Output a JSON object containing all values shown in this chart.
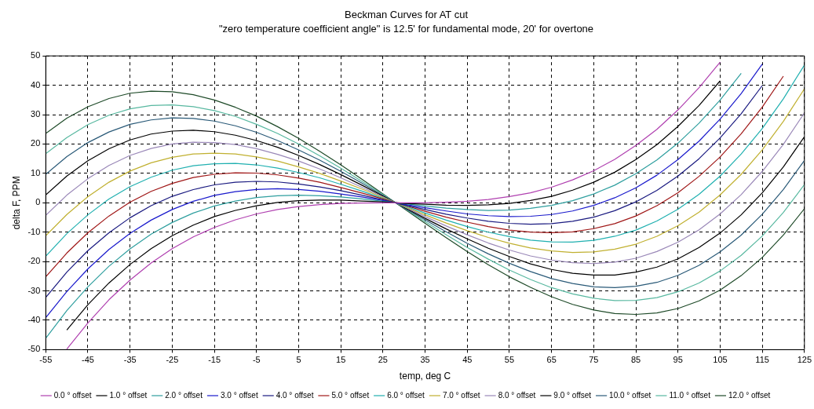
{
  "chart_data": {
    "type": "line",
    "title": "Beckman Curves for AT cut",
    "subtitle": "\"zero temperature coefficient angle\" is 12.5' for fundamental mode, 20' for overtone",
    "xlabel": "temp, deg C",
    "ylabel": "delta F, PPM",
    "x": [
      -55,
      -50,
      -45,
      -40,
      -35,
      -30,
      -25,
      -20,
      -15,
      -10,
      -5,
      0,
      5,
      10,
      15,
      20,
      25,
      30,
      35,
      40,
      45,
      50,
      55,
      60,
      65,
      70,
      75,
      80,
      85,
      90,
      95,
      100,
      105,
      110,
      115,
      120,
      125
    ],
    "xlim": [
      -55,
      125
    ],
    "xticks": [
      -55,
      -45,
      -35,
      -25,
      -15,
      -5,
      5,
      15,
      25,
      35,
      45,
      55,
      65,
      75,
      85,
      95,
      105,
      115,
      125
    ],
    "ylim": [
      -50,
      50
    ],
    "yticks": [
      -50,
      -40,
      -30,
      -20,
      -10,
      0,
      10,
      20,
      30,
      40,
      50
    ],
    "grid": true,
    "legend": "bottom",
    "marker": "none",
    "line_style": "solid",
    "series": [
      {
        "name": "0.0 ° offset",
        "color": "#b040b0",
        "values": [
          null,
          -49.8,
          -40.9,
          -33.0,
          -26.3,
          -20.5,
          -15.6,
          -11.6,
          -8.4,
          -5.8,
          -3.8,
          -2.3,
          -1.3,
          -0.6,
          -0.2,
          -0.1,
          0.0,
          0.0,
          0.0,
          0.2,
          0.5,
          1.1,
          2.1,
          3.4,
          5.3,
          7.8,
          10.9,
          14.8,
          19.5,
          25.0,
          31.6,
          39.2,
          47.9,
          null,
          null,
          null,
          null
        ]
      },
      {
        "name": "1.0 ° offset",
        "color": "#000000",
        "values": [
          null,
          -43.3,
          -34.7,
          -27.3,
          -21.0,
          -15.6,
          -11.2,
          -7.6,
          -4.7,
          -2.6,
          -1.0,
          0.1,
          0.7,
          0.9,
          0.9,
          0.6,
          0.3,
          -0.2,
          -0.5,
          -0.8,
          -0.9,
          -0.7,
          -0.2,
          0.8,
          2.2,
          4.3,
          7.0,
          10.4,
          14.7,
          19.8,
          26.0,
          33.1,
          41.5,
          null,
          null,
          null,
          null
        ]
      },
      {
        "name": "2.0 ° offset",
        "color": "#2f9f9f",
        "values": [
          -46.1,
          -36.7,
          -28.6,
          -21.6,
          -15.7,
          -10.7,
          -6.7,
          -3.5,
          -1.1,
          0.6,
          1.8,
          2.4,
          2.6,
          2.4,
          2.0,
          1.3,
          0.5,
          -0.3,
          -1.1,
          -1.8,
          -2.3,
          -2.6,
          -2.5,
          -1.9,
          -0.9,
          0.7,
          3.0,
          6.0,
          9.9,
          14.6,
          20.3,
          27.1,
          35.0,
          44.1,
          null,
          null,
          null
        ]
      },
      {
        "name": "3.0 ° offset",
        "color": "#1a1acc",
        "values": [
          -39.1,
          -30.2,
          -22.5,
          -15.9,
          -10.4,
          -5.9,
          -2.3,
          0.5,
          2.5,
          3.8,
          4.5,
          4.8,
          4.5,
          3.9,
          3.0,
          2.0,
          0.8,
          -0.5,
          -1.7,
          -2.8,
          -3.8,
          -4.4,
          -4.7,
          -4.6,
          -4.0,
          -2.8,
          -0.9,
          1.7,
          5.1,
          9.4,
          14.7,
          21.0,
          28.5,
          37.2,
          47.2,
          null,
          null
        ]
      },
      {
        "name": "4.0 ° offset",
        "color": "#1a1a80",
        "values": [
          -32.2,
          -23.6,
          -16.3,
          -10.2,
          -5.1,
          -1.0,
          2.2,
          4.5,
          6.1,
          7.0,
          7.3,
          7.1,
          6.4,
          5.4,
          4.1,
          2.6,
          1.0,
          -0.7,
          -2.3,
          -3.9,
          -5.2,
          -6.3,
          -7.0,
          -7.3,
          -7.1,
          -6.3,
          -4.9,
          -2.7,
          0.3,
          4.2,
          9.1,
          15.0,
          22.1,
          30.3,
          39.9,
          null,
          null
        ]
      },
      {
        "name": "5.0 ° offset",
        "color": "#a01818",
        "values": [
          -25.2,
          -17.1,
          -10.2,
          -4.5,
          0.2,
          3.9,
          6.6,
          8.6,
          9.7,
          10.2,
          10.1,
          9.5,
          8.4,
          7.0,
          5.2,
          3.3,
          1.3,
          -0.8,
          -2.9,
          -4.9,
          -6.6,
          -8.1,
          -9.3,
          -10.0,
          -10.2,
          -9.9,
          -8.8,
          -7.1,
          -4.5,
          -1.0,
          3.4,
          9.0,
          15.6,
          23.5,
          32.6,
          43.1,
          null
        ]
      },
      {
        "name": "6.0 ° offset",
        "color": "#20b0b0",
        "values": [
          -18.2,
          -10.5,
          -4.1,
          1.3,
          5.5,
          8.7,
          11.1,
          12.6,
          13.3,
          13.4,
          12.9,
          11.8,
          10.3,
          8.5,
          6.3,
          4.0,
          1.5,
          -1.0,
          -3.5,
          -5.9,
          -8.1,
          -10.0,
          -11.5,
          -12.7,
          -13.3,
          -13.4,
          -12.8,
          -11.4,
          -9.3,
          -6.2,
          -2.2,
          2.9,
          9.1,
          16.6,
          25.3,
          35.4,
          46.9
        ]
      },
      {
        "name": "7.0 ° offset",
        "color": "#c0b030",
        "values": [
          -11.2,
          -4.0,
          2.1,
          7.0,
          10.8,
          13.6,
          15.5,
          16.6,
          16.9,
          16.6,
          15.6,
          14.2,
          12.2,
          10.0,
          7.4,
          4.7,
          1.8,
          -1.2,
          -4.1,
          -6.9,
          -9.5,
          -11.8,
          -13.8,
          -15.4,
          -16.4,
          -16.9,
          -16.7,
          -15.8,
          -14.1,
          -11.4,
          -7.8,
          -3.2,
          2.7,
          9.7,
          18.0,
          27.7,
          38.8
        ]
      },
      {
        "name": "8.0 ° offset",
        "color": "#9a88b8",
        "values": [
          -4.3,
          2.6,
          8.2,
          12.7,
          16.1,
          18.5,
          20.0,
          20.6,
          20.5,
          19.8,
          18.4,
          16.5,
          14.2,
          11.5,
          8.5,
          5.3,
          2.0,
          -1.3,
          -4.7,
          -7.9,
          -10.9,
          -13.7,
          -16.1,
          -18.1,
          -19.5,
          -20.4,
          -20.7,
          -20.2,
          -18.9,
          -16.6,
          -13.4,
          -9.2,
          -3.8,
          2.8,
          10.7,
          19.9,
          30.6
        ]
      },
      {
        "name": "9.0 ° offset",
        "color": "#000000",
        "values": [
          2.7,
          9.1,
          14.3,
          18.4,
          21.4,
          23.4,
          24.4,
          24.7,
          24.2,
          23.0,
          21.2,
          18.9,
          16.1,
          13.0,
          9.6,
          6.0,
          2.3,
          -1.5,
          -5.3,
          -8.9,
          -12.3,
          -15.5,
          -18.3,
          -20.8,
          -22.7,
          -24.0,
          -24.6,
          -24.6,
          -23.6,
          -21.9,
          -19.1,
          -15.2,
          -10.3,
          -4.1,
          3.4,
          12.2,
          22.5
        ]
      },
      {
        "name": "10.0 ° offset",
        "color": "#2a5a78",
        "values": [
          9.7,
          15.7,
          20.5,
          24.1,
          26.7,
          28.2,
          28.9,
          28.7,
          27.8,
          26.2,
          24.0,
          21.2,
          18.0,
          14.5,
          10.7,
          6.7,
          2.5,
          -1.7,
          -5.8,
          -9.9,
          -13.8,
          -17.4,
          -20.6,
          -23.4,
          -25.8,
          -27.5,
          -28.6,
          -28.9,
          -28.4,
          -27.1,
          -24.7,
          -21.3,
          -16.7,
          -11.0,
          -3.9,
          4.5,
          14.4
        ]
      },
      {
        "name": "11.0 ° offset",
        "color": "#58b8a0",
        "values": [
          16.7,
          22.2,
          26.6,
          29.8,
          32.0,
          33.1,
          33.3,
          32.7,
          31.4,
          29.4,
          26.7,
          23.6,
          20.0,
          16.0,
          11.8,
          7.3,
          2.8,
          -1.8,
          -6.4,
          -10.9,
          -15.2,
          -19.2,
          -22.9,
          -26.1,
          -28.9,
          -31.0,
          -32.5,
          -33.3,
          -33.2,
          -32.3,
          -30.3,
          -27.3,
          -23.2,
          -17.9,
          -11.3,
          -3.3,
          6.2
        ]
      },
      {
        "name": "12.0 ° offset",
        "color": "#1e4a28",
        "values": [
          23.6,
          28.8,
          32.7,
          35.5,
          37.3,
          38.0,
          37.8,
          36.8,
          35.0,
          32.5,
          29.5,
          25.9,
          21.9,
          17.5,
          12.9,
          8.0,
          3.0,
          -2.0,
          -7.0,
          -11.9,
          -16.6,
          -21.1,
          -25.2,
          -28.8,
          -32.0,
          -34.6,
          -36.5,
          -37.7,
          -38.0,
          -37.5,
          -36.0,
          -33.4,
          -29.7,
          -24.8,
          -18.6,
          -11.0,
          -2.0
        ]
      }
    ]
  }
}
